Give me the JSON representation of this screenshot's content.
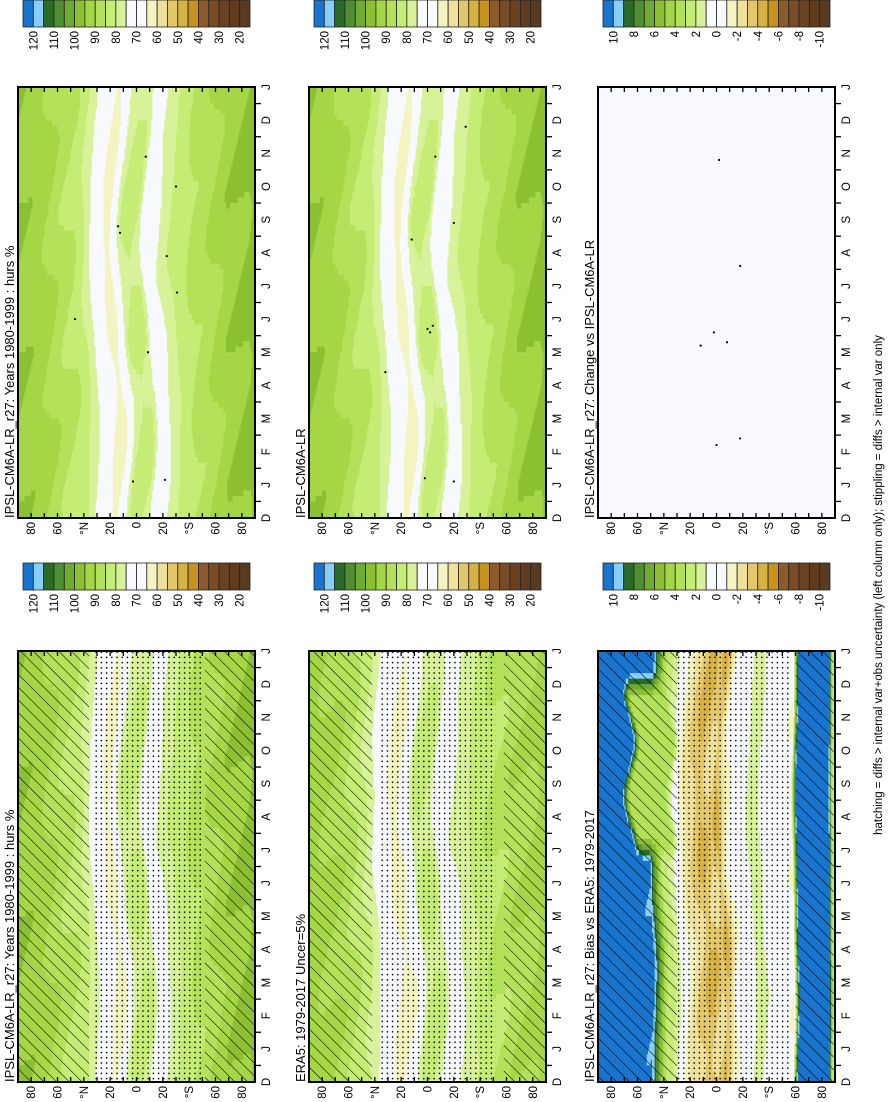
{
  "chart_data": {
    "type": "heatmap",
    "footnote": "hatching = diffs > internal var+obs uncertainty (left column only); stippling = diffs > internal var only",
    "x_tick_labels": [
      "D",
      "J",
      "F",
      "M",
      "A",
      "M",
      "J",
      "J",
      "A",
      "S",
      "O",
      "N",
      "D",
      "J"
    ],
    "y_ticks": [
      80,
      60,
      40,
      20,
      0,
      -20,
      -40,
      -60,
      -80
    ],
    "y_tick_labels": [
      "80",
      "60",
      "°N",
      "20",
      "0",
      "20",
      "°S",
      "60",
      "80"
    ],
    "ylim": [
      -90,
      90
    ],
    "xlim_months": [
      0,
      13
    ],
    "colorbars": {
      "hurs": {
        "top": 120,
        "step": 5,
        "labels": [
          120,
          110,
          100,
          90,
          80,
          70,
          60,
          50,
          40,
          30,
          20
        ]
      },
      "bias": {
        "top": 10,
        "step": 1,
        "labels": [
          10,
          8,
          6,
          4,
          2,
          0,
          -2,
          -4,
          -6,
          -8,
          -10
        ]
      }
    },
    "colors": [
      "#1874cd",
      "#87cefa",
      "#2a6b2a",
      "#4f8f32",
      "#6fab30",
      "#8cc033",
      "#a5d646",
      "#b3e25a",
      "#c5ec74",
      "#d8f29a",
      "#f8f8ff",
      "#f8f8ff",
      "#f3f4c0",
      "#efe19b",
      "#e2c86b",
      "#d6b143",
      "#c6931f",
      "#8c5a2b",
      "#7a4c26",
      "#6a4222",
      "#5f3b1f",
      "#573a20"
    ],
    "panels": [
      {
        "title": "IPSL-CM6A-LR_r27: Years 1980-1999 : hurs %",
        "colorbar": "hurs",
        "itcz_shift": 6,
        "profile": [
          [
            90,
            95
          ],
          [
            70,
            92
          ],
          [
            60,
            88
          ],
          [
            45,
            84
          ],
          [
            35,
            78
          ],
          [
            28,
            70
          ],
          [
            22,
            66
          ],
          [
            17,
            62
          ],
          [
            12,
            68
          ],
          [
            7,
            78
          ],
          [
            0,
            82
          ],
          [
            -7,
            80
          ],
          [
            -12,
            70
          ],
          [
            -18,
            72
          ],
          [
            -25,
            78
          ],
          [
            -35,
            82
          ],
          [
            -45,
            86
          ],
          [
            -55,
            88
          ],
          [
            -65,
            92
          ],
          [
            -80,
            95
          ],
          [
            -90,
            96
          ]
        ],
        "hatch": [
          [
            90,
            36
          ],
          [
            -52,
            -90
          ]
        ],
        "stipple": [
          [
            32,
            -50
          ]
        ],
        "dots": []
      },
      {
        "title": "IPSL-CM6A-LR_r27: Years 1980-1999 : hurs %",
        "colorbar": "hurs",
        "itcz_shift": 6,
        "profile": [
          [
            90,
            95
          ],
          [
            70,
            92
          ],
          [
            60,
            88
          ],
          [
            45,
            84
          ],
          [
            35,
            78
          ],
          [
            28,
            70
          ],
          [
            22,
            66
          ],
          [
            17,
            62
          ],
          [
            12,
            68
          ],
          [
            7,
            78
          ],
          [
            0,
            82
          ],
          [
            -7,
            80
          ],
          [
            -12,
            70
          ],
          [
            -18,
            72
          ],
          [
            -25,
            78
          ],
          [
            -35,
            82
          ],
          [
            -45,
            86
          ],
          [
            -55,
            88
          ],
          [
            -65,
            92
          ],
          [
            -80,
            95
          ],
          [
            -90,
            96
          ]
        ],
        "hatch": [],
        "stipple": [],
        "dots": [
          [
            1.1,
            2.7
          ],
          [
            1.15,
            -21.6
          ],
          [
            5.0,
            -8.7
          ],
          [
            6.8,
            -30.8
          ],
          [
            8.8,
            14
          ],
          [
            8.6,
            12.5
          ],
          [
            7.9,
            -23
          ],
          [
            10.9,
            -7
          ],
          [
            10.0,
            -30
          ],
          [
            6.0,
            46.7
          ]
        ]
      },
      {
        "title": "ERA5: 1979-2017 Uncer=5%",
        "colorbar": "hurs",
        "itcz_shift": 6,
        "profile": [
          [
            90,
            92
          ],
          [
            70,
            90
          ],
          [
            60,
            87
          ],
          [
            45,
            80
          ],
          [
            35,
            72
          ],
          [
            28,
            66
          ],
          [
            20,
            63
          ],
          [
            12,
            68
          ],
          [
            5,
            80
          ],
          [
            0,
            82
          ],
          [
            -7,
            80
          ],
          [
            -12,
            72
          ],
          [
            -20,
            73
          ],
          [
            -30,
            78
          ],
          [
            -45,
            84
          ],
          [
            -55,
            86
          ],
          [
            -65,
            88
          ],
          [
            -80,
            90
          ],
          [
            -90,
            92
          ]
        ],
        "hatch": [
          [
            90,
            42
          ],
          [
            -58,
            -90
          ]
        ],
        "stipple": [
          [
            36,
            -52
          ]
        ],
        "dots": []
      },
      {
        "title": "IPSL-CM6A-LR",
        "colorbar": "hurs",
        "itcz_shift": 6,
        "profile": [
          [
            90,
            95
          ],
          [
            70,
            92
          ],
          [
            60,
            88
          ],
          [
            45,
            84
          ],
          [
            35,
            78
          ],
          [
            28,
            70
          ],
          [
            22,
            66
          ],
          [
            17,
            62
          ],
          [
            12,
            68
          ],
          [
            7,
            78
          ],
          [
            0,
            82
          ],
          [
            -7,
            80
          ],
          [
            -12,
            70
          ],
          [
            -18,
            72
          ],
          [
            -25,
            78
          ],
          [
            -35,
            82
          ],
          [
            -45,
            86
          ],
          [
            -55,
            88
          ],
          [
            -65,
            92
          ],
          [
            -80,
            95
          ],
          [
            -90,
            96
          ]
        ],
        "hatch": [],
        "stipple": [],
        "dots": [
          [
            1.2,
            2
          ],
          [
            1.1,
            -20
          ],
          [
            4.4,
            32
          ],
          [
            5.6,
            -2
          ],
          [
            5.7,
            0
          ],
          [
            5.8,
            -4
          ],
          [
            8.4,
            12
          ],
          [
            8.9,
            -20
          ],
          [
            10.9,
            -6
          ],
          [
            11.8,
            -29
          ]
        ]
      },
      {
        "title": "IPSL-CM6A-LR_r27: Bias vs ERA5: 1979-2017",
        "colorbar": "bias",
        "itcz_shift": 5,
        "profile": [
          [
            90,
            12
          ],
          [
            75,
            12
          ],
          [
            60,
            11
          ],
          [
            50,
            10.5
          ],
          [
            40,
            3
          ],
          [
            32,
            1.5
          ],
          [
            28,
            0
          ],
          [
            22,
            -2
          ],
          [
            15,
            -3
          ],
          [
            8,
            -4
          ],
          [
            0,
            -3
          ],
          [
            -5,
            -4
          ],
          [
            -12,
            -1
          ],
          [
            -18,
            0
          ],
          [
            -25,
            0.5
          ],
          [
            -30,
            2
          ],
          [
            -38,
            0.5
          ],
          [
            -50,
            0
          ],
          [
            -58,
            -0.5
          ],
          [
            -62,
            11
          ],
          [
            -85,
            12
          ],
          [
            -88,
            3
          ],
          [
            -90,
            2
          ]
        ],
        "anomalies": [
          {
            "months": [
              6.6,
              12.4
            ],
            "lats": [
              32,
              68
            ],
            "value": 4
          }
        ],
        "hatch": [
          [
            90,
            30
          ],
          [
            -60,
            -90
          ]
        ],
        "stipple": [
          [
            30,
            -56
          ]
        ],
        "dots": []
      },
      {
        "title": "IPSL-CM6A-LR_r27: Change vs IPSL-CM6A-LR",
        "colorbar": "bias",
        "itcz_shift": 0,
        "profile": [
          [
            90,
            0
          ],
          [
            -90,
            0
          ]
        ],
        "hatch": [],
        "stipple": [],
        "dots": [
          [
            2.2,
            0
          ],
          [
            2.4,
            -18
          ],
          [
            5.2,
            12
          ],
          [
            5.3,
            -8
          ],
          [
            5.6,
            2
          ],
          [
            7.6,
            -18
          ],
          [
            10.8,
            -2
          ]
        ]
      }
    ]
  }
}
